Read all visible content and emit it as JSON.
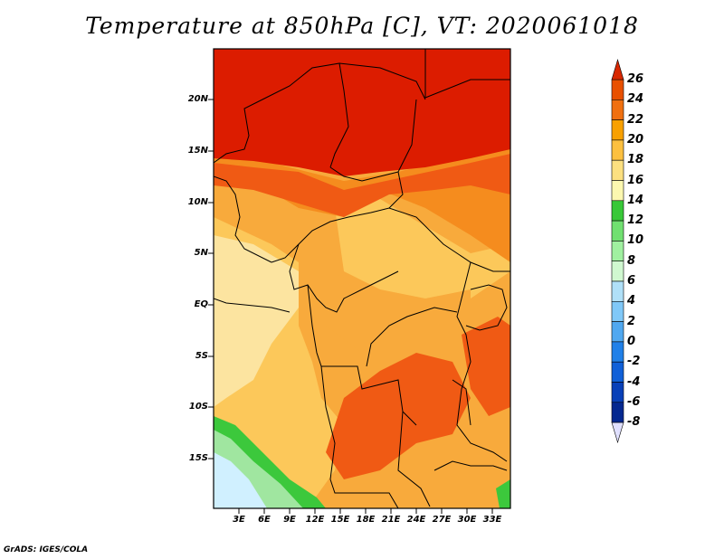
{
  "title": "Temperature at 850hPa [C], VT: 2020061018",
  "footer": "GrADS: IGES/COLA",
  "lat_labels": [
    "20N",
    "15N",
    "10N",
    "5N",
    "EQ",
    "5S",
    "10S",
    "15S"
  ],
  "lon_labels": [
    "3E",
    "6E",
    "9E",
    "12E",
    "15E",
    "18E",
    "21E",
    "24E",
    "27E",
    "30E",
    "33E"
  ],
  "colorbar": {
    "labels": [
      "26",
      "24",
      "22",
      "20",
      "18",
      "16",
      "14",
      "12",
      "10",
      "8",
      "6",
      "4",
      "2",
      "0",
      "-2",
      "-4",
      "-6",
      "-8"
    ],
    "colors": [
      "#d82800",
      "#e85000",
      "#f07010",
      "#f8a000",
      "#fcc040",
      "#fce080",
      "#fcf8b0",
      "#38c838",
      "#70e070",
      "#a0f0a0",
      "#d0f8d0",
      "#b0e0f8",
      "#80c8f8",
      "#50a8f0",
      "#2080e8",
      "#1060d8",
      "#0840b8",
      "#042890",
      "#000060"
    ],
    "top_arrow_color": "#d82800",
    "bottom_arrow_color": "#e0e0ff"
  },
  "map_colors": {
    "hot": "#dc1c00",
    "orange_red": "#f05a14",
    "orange": "#f58c1e",
    "light_orange": "#f8aa3c",
    "yellow_orange": "#fcc85a",
    "pale_yellow": "#fce4a0",
    "green": "#3cc83c",
    "light_green": "#a0e6a0",
    "pale_blue": "#d0f0ff"
  }
}
